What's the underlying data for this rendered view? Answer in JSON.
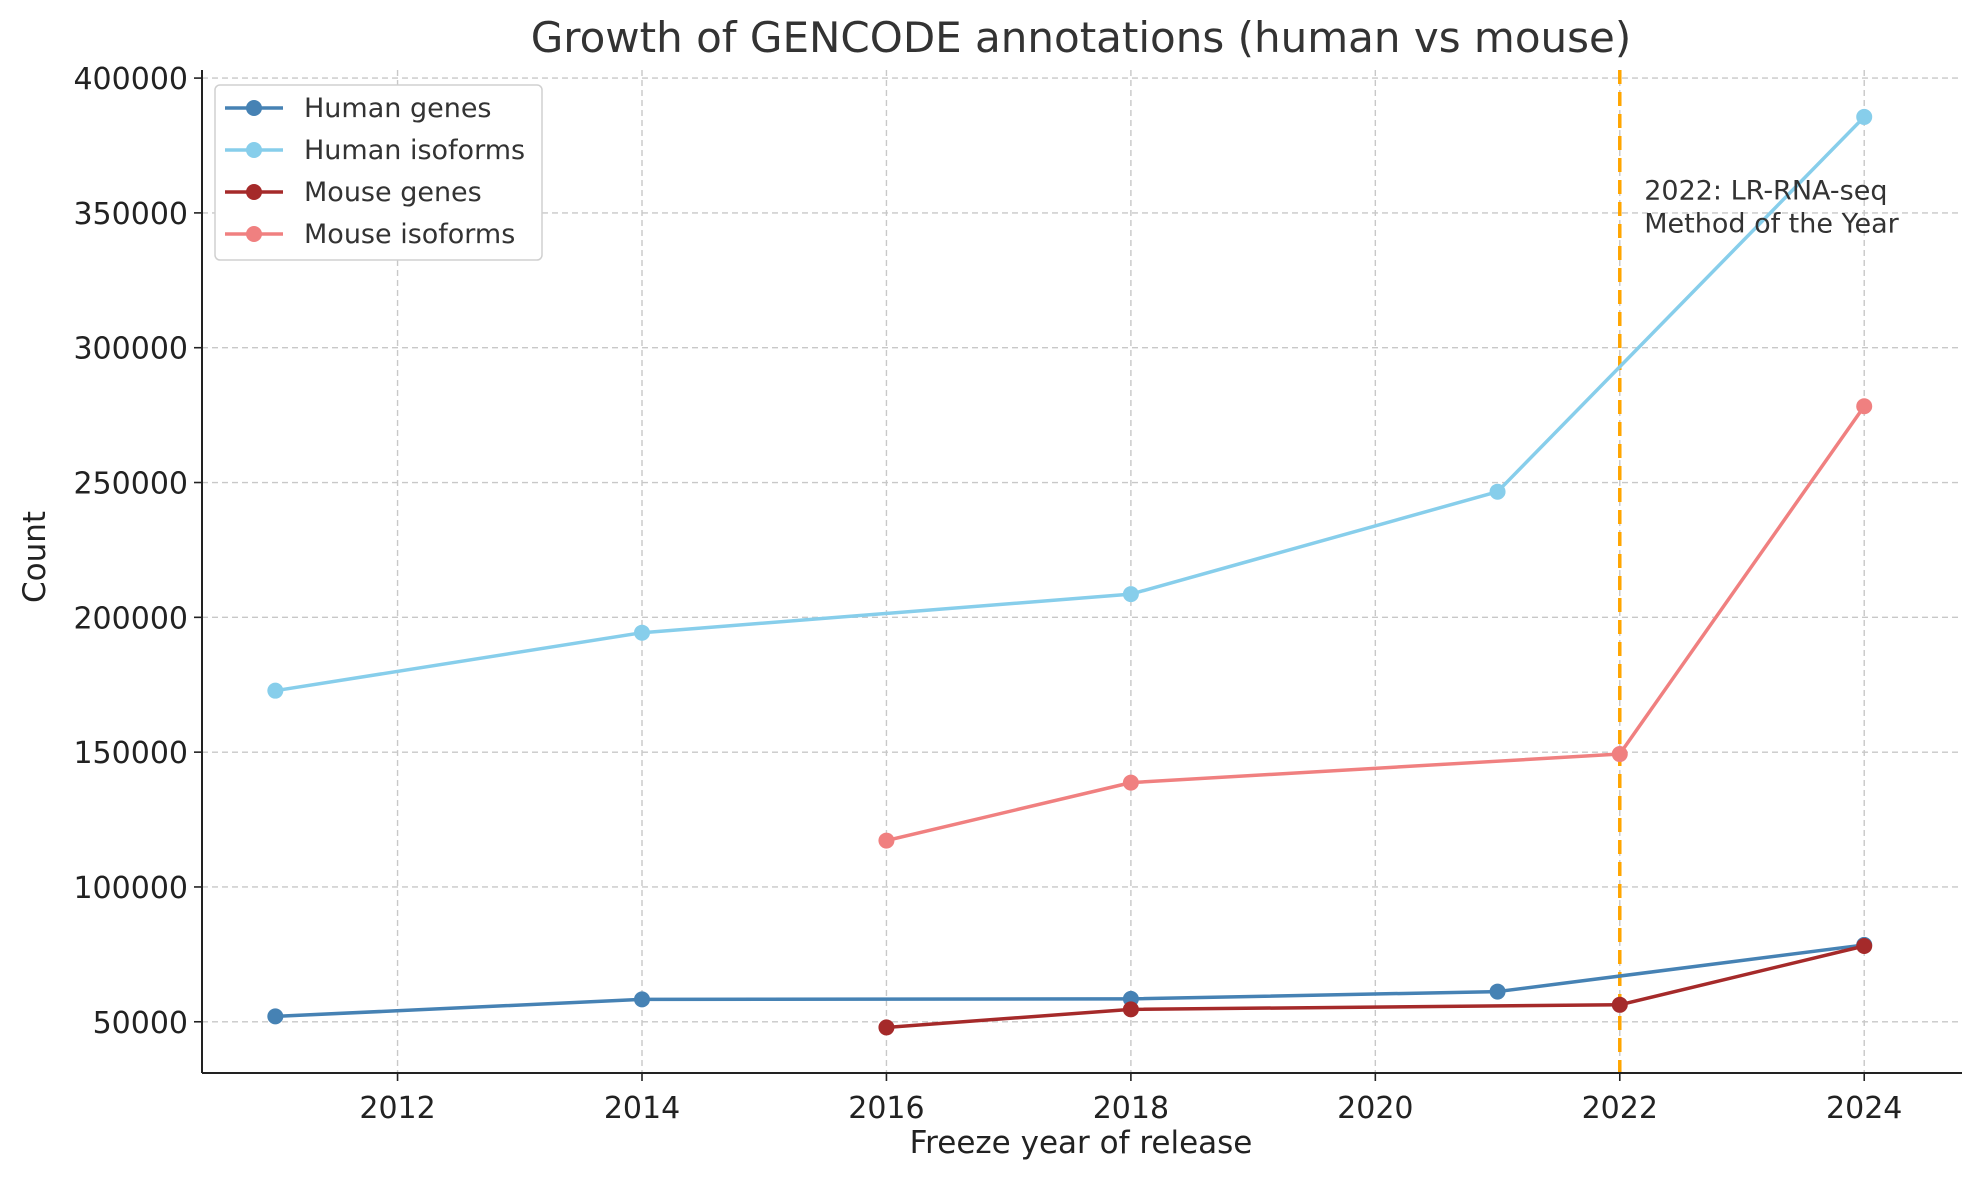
{
  "chart_data": {
    "type": "line",
    "title": "Growth of GENCODE annotations (human vs mouse)",
    "xlabel": "Freeze year of release",
    "ylabel": "Count",
    "xlim": [
      2010.4,
      2024.8
    ],
    "ylim": [
      31000,
      403000
    ],
    "x_ticks": [
      2012,
      2014,
      2016,
      2018,
      2020,
      2022,
      2024
    ],
    "y_ticks": [
      50000,
      100000,
      150000,
      200000,
      250000,
      300000,
      350000,
      400000
    ],
    "x_tick_labels": [
      "2012",
      "2014",
      "2016",
      "2018",
      "2020",
      "2022",
      "2024"
    ],
    "y_tick_labels": [
      "50000",
      "100000",
      "150000",
      "200000",
      "250000",
      "300000",
      "350000",
      "400000"
    ],
    "grid": true,
    "legend_position": "top-left",
    "series": [
      {
        "name": "Human genes",
        "color": "#4682B4",
        "points": [
          {
            "x": 2011,
            "y": 52000
          },
          {
            "x": 2014,
            "y": 58300
          },
          {
            "x": 2018,
            "y": 58500
          },
          {
            "x": 2021,
            "y": 61200
          },
          {
            "x": 2024,
            "y": 78500
          }
        ]
      },
      {
        "name": "Human isoforms",
        "color": "#87CEEB",
        "points": [
          {
            "x": 2011,
            "y": 172800
          },
          {
            "x": 2014,
            "y": 194300
          },
          {
            "x": 2018,
            "y": 208600
          },
          {
            "x": 2021,
            "y": 246600
          },
          {
            "x": 2024,
            "y": 385600
          }
        ]
      },
      {
        "name": "Mouse genes",
        "color": "#A52A2A",
        "points": [
          {
            "x": 2016,
            "y": 47900
          },
          {
            "x": 2018,
            "y": 54600
          },
          {
            "x": 2022,
            "y": 56300
          },
          {
            "x": 2024,
            "y": 78100
          }
        ]
      },
      {
        "name": "Mouse isoforms",
        "color": "#F08080",
        "points": [
          {
            "x": 2016,
            "y": 117200
          },
          {
            "x": 2018,
            "y": 138700
          },
          {
            "x": 2022,
            "y": 149300
          },
          {
            "x": 2024,
            "y": 278300
          }
        ]
      }
    ],
    "vertical_line": {
      "x": 2022,
      "color": "#FFA500",
      "style": "dashed"
    },
    "annotation": {
      "x": 2022.2,
      "y": 355000,
      "lines": [
        "2022: LR-RNA-seq",
        "Method of the Year"
      ]
    }
  }
}
